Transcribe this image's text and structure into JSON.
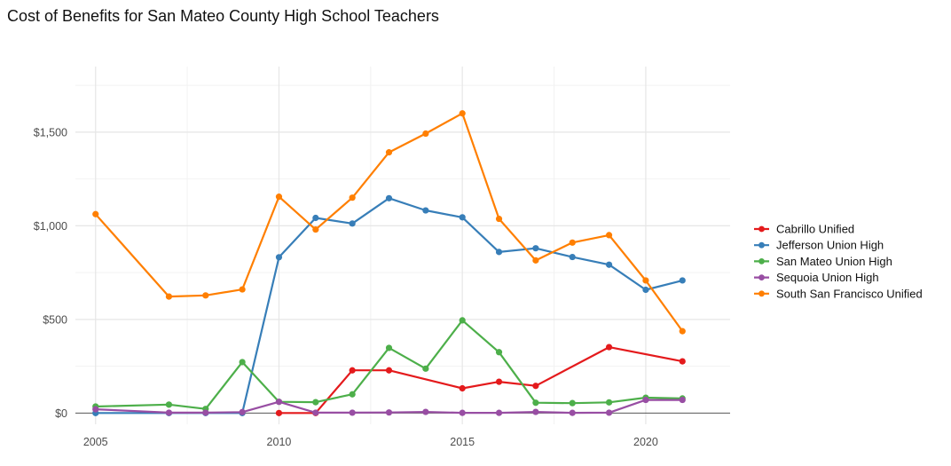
{
  "chart_data": {
    "type": "line",
    "title": "Cost of Benefits for San Mateo County High School Teachers",
    "xlabel": "",
    "ylabel": "",
    "xlim": [
      2004.45,
      2022.3
    ],
    "ylim": [
      -60,
      1850
    ],
    "x_ticks": [
      2005,
      2010,
      2015,
      2020
    ],
    "x_tick_labels": [
      "2005",
      "2010",
      "2015",
      "2020"
    ],
    "y_ticks": [
      0,
      500,
      1000,
      1500
    ],
    "y_tick_labels": [
      "$0",
      "$500",
      "$1,000",
      "$1,500"
    ],
    "grid": true,
    "legend_position": "right",
    "series": [
      {
        "name": "Cabrillo Unified",
        "color": "#e41a1c",
        "points": [
          [
            2010,
            0
          ],
          [
            2011,
            0
          ],
          [
            2012,
            228
          ],
          [
            2013,
            228
          ],
          [
            2015,
            132
          ],
          [
            2016,
            167
          ],
          [
            2017,
            145
          ],
          [
            2019,
            352
          ],
          [
            2021,
            276
          ]
        ]
      },
      {
        "name": "Jefferson Union High",
        "color": "#377eb8",
        "points": [
          [
            2005,
            0
          ],
          [
            2007,
            0
          ],
          [
            2008,
            0
          ],
          [
            2009,
            0
          ],
          [
            2010,
            832
          ],
          [
            2011,
            1042
          ],
          [
            2012,
            1012
          ],
          [
            2013,
            1147
          ],
          [
            2014,
            1082
          ],
          [
            2015,
            1045
          ],
          [
            2016,
            860
          ],
          [
            2017,
            880
          ],
          [
            2018,
            833
          ],
          [
            2019,
            792
          ],
          [
            2020,
            658
          ],
          [
            2021,
            708
          ]
        ]
      },
      {
        "name": "San Mateo Union High",
        "color": "#4daf4a",
        "points": [
          [
            2005,
            35
          ],
          [
            2007,
            45
          ],
          [
            2008,
            22
          ],
          [
            2009,
            272
          ],
          [
            2010,
            60
          ],
          [
            2011,
            58
          ],
          [
            2012,
            100
          ],
          [
            2013,
            348
          ],
          [
            2014,
            237
          ],
          [
            2015,
            495
          ],
          [
            2016,
            325
          ],
          [
            2017,
            55
          ],
          [
            2018,
            53
          ],
          [
            2019,
            57
          ],
          [
            2020,
            82
          ],
          [
            2021,
            78
          ]
        ]
      },
      {
        "name": "Sequoia Union High",
        "color": "#984ea3",
        "points": [
          [
            2005,
            20
          ],
          [
            2007,
            2
          ],
          [
            2008,
            2
          ],
          [
            2009,
            5
          ],
          [
            2010,
            60
          ],
          [
            2011,
            2
          ],
          [
            2012,
            2
          ],
          [
            2013,
            3
          ],
          [
            2014,
            6
          ],
          [
            2015,
            1
          ],
          [
            2016,
            1
          ],
          [
            2017,
            6
          ],
          [
            2018,
            1
          ],
          [
            2019,
            2
          ],
          [
            2020,
            70
          ],
          [
            2021,
            70
          ]
        ]
      },
      {
        "name": "South San Francisco Unified",
        "color": "#ff7f00",
        "points": [
          [
            2005,
            1062
          ],
          [
            2007,
            622
          ],
          [
            2008,
            628
          ],
          [
            2009,
            660
          ],
          [
            2010,
            1155
          ],
          [
            2011,
            980
          ],
          [
            2012,
            1150
          ],
          [
            2013,
            1392
          ],
          [
            2014,
            1492
          ],
          [
            2015,
            1600
          ],
          [
            2016,
            1037
          ],
          [
            2017,
            815
          ],
          [
            2018,
            910
          ],
          [
            2019,
            950
          ],
          [
            2020,
            708
          ],
          [
            2021,
            437
          ]
        ]
      }
    ]
  }
}
